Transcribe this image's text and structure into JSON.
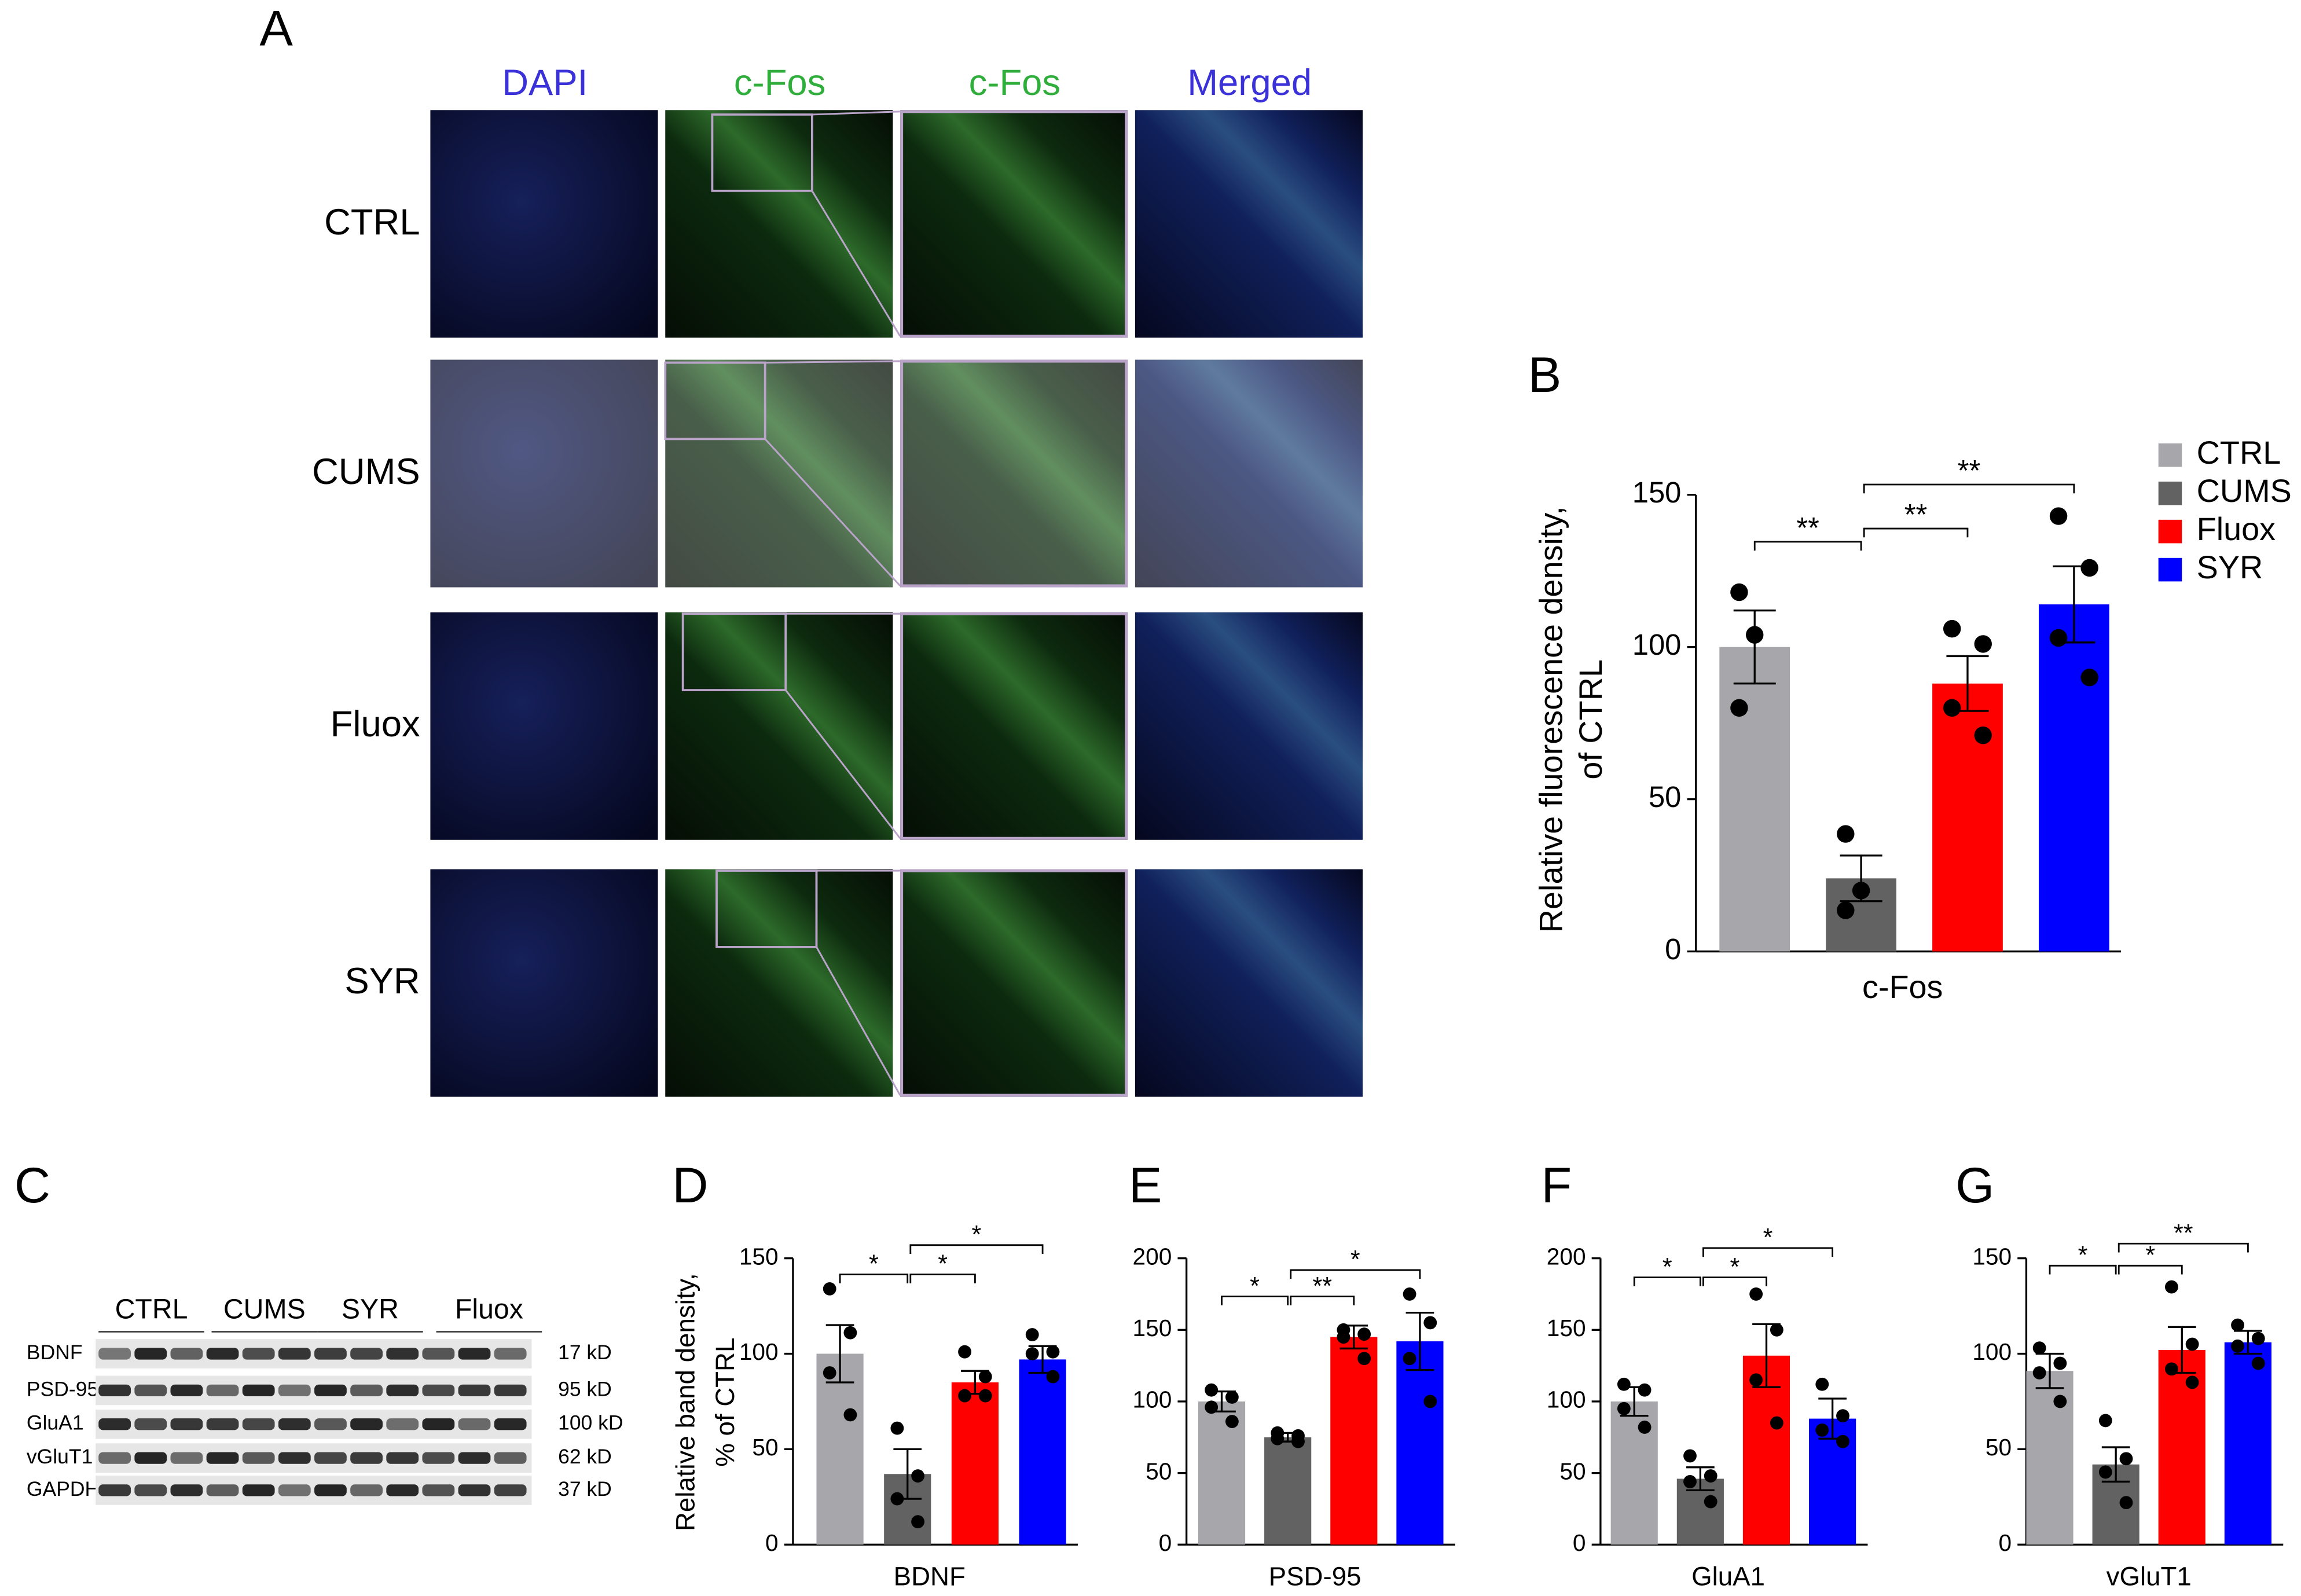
{
  "panel_labels": [
    "A",
    "B",
    "C",
    "D",
    "E",
    "F",
    "G"
  ],
  "micrograph": {
    "columns": [
      "DAPI",
      "c-Fos",
      "c-Fos",
      "Merged"
    ],
    "rows": [
      "CTRL",
      "CUMS",
      "Fluox",
      "SYR"
    ]
  },
  "western_blot": {
    "groups": [
      "CTRL",
      "CUMS",
      "SYR",
      "Fluox"
    ],
    "proteins": [
      "BDNF",
      "PSD-95",
      "GluA1",
      "vGluT1",
      "GAPDH"
    ],
    "weights": [
      "17 kD",
      "95 kD",
      "100 kD",
      "62 kD",
      "37 kD"
    ]
  },
  "chart_data": [
    {
      "type": "bar",
      "xlabel": "c-Fos",
      "ylabel": [
        "Relative fluorescence density,",
        "of CTRL"
      ],
      "ylim": [
        0,
        150
      ],
      "yticks": [
        0,
        50,
        100,
        150
      ],
      "legend": "right",
      "annotations": [
        "**",
        "**",
        "**"
      ],
      "series": [
        {
          "name": "CTRL",
          "color": "#a7a7ab",
          "values": [
            100
          ],
          "errors": [
            12
          ],
          "points": [
            118,
            104,
            80
          ]
        },
        {
          "name": "CUMS",
          "color": "#626262",
          "values": [
            24
          ],
          "errors": [
            7.5
          ],
          "points": [
            38.6,
            20,
            13.5
          ]
        },
        {
          "name": "Fluox",
          "color": "#fe0000",
          "values": [
            88
          ],
          "errors": [
            9
          ],
          "points": [
            106,
            101,
            80,
            71
          ]
        },
        {
          "name": "SYR",
          "color": "#0000fe",
          "values": [
            114
          ],
          "errors": [
            12.5
          ],
          "points": [
            143,
            126,
            103,
            90
          ]
        }
      ]
    },
    {
      "type": "bar",
      "xlabel": "BDNF",
      "ylabel": [
        "Relative band density,",
        "% of CTRL"
      ],
      "ylim": [
        0,
        150
      ],
      "yticks": [
        0,
        50,
        100,
        150
      ],
      "annotations": [
        "*",
        "*",
        "*"
      ],
      "series": [
        {
          "color": "#a7a7ab",
          "values": [
            100
          ],
          "errors": [
            15
          ],
          "points": [
            134,
            111,
            90,
            68
          ]
        },
        {
          "color": "#626262",
          "values": [
            37
          ],
          "errors": [
            13
          ],
          "points": [
            61,
            36,
            24,
            12
          ]
        },
        {
          "color": "#fe0000",
          "values": [
            85
          ],
          "errors": [
            6
          ],
          "points": [
            101,
            88,
            78,
            78
          ]
        },
        {
          "color": "#0000fe",
          "values": [
            97
          ],
          "errors": [
            7
          ],
          "points": [
            110,
            101,
            100,
            88
          ]
        }
      ]
    },
    {
      "type": "bar",
      "xlabel": "PSD-95",
      "ylim": [
        0,
        200
      ],
      "yticks": [
        0,
        50,
        100,
        150,
        200
      ],
      "annotations": [
        "*",
        "**",
        "*"
      ],
      "series": [
        {
          "color": "#a7a7ab",
          "values": [
            100
          ],
          "errors": [
            7
          ],
          "points": [
            108,
            103,
            96,
            86
          ]
        },
        {
          "color": "#626262",
          "values": [
            75
          ],
          "errors": [
            3
          ],
          "points": [
            78,
            76,
            74,
            72
          ]
        },
        {
          "color": "#fe0000",
          "values": [
            145
          ],
          "errors": [
            8
          ],
          "points": [
            150,
            147,
            145,
            130
          ]
        },
        {
          "color": "#0000fe",
          "values": [
            142
          ],
          "errors": [
            20
          ],
          "points": [
            175,
            155,
            130,
            100
          ]
        }
      ]
    },
    {
      "type": "bar",
      "xlabel": "GluA1",
      "ylim": [
        0,
        200
      ],
      "yticks": [
        0,
        50,
        100,
        150,
        200
      ],
      "annotations": [
        "*",
        "*",
        "*"
      ],
      "series": [
        {
          "color": "#a7a7ab",
          "values": [
            100
          ],
          "errors": [
            10
          ],
          "points": [
            112,
            108,
            95,
            82
          ]
        },
        {
          "color": "#626262",
          "values": [
            46
          ],
          "errors": [
            8
          ],
          "points": [
            62,
            48,
            44,
            30
          ]
        },
        {
          "color": "#fe0000",
          "values": [
            132
          ],
          "errors": [
            22
          ],
          "points": [
            175,
            150,
            115,
            85
          ]
        },
        {
          "color": "#0000fe",
          "values": [
            88
          ],
          "errors": [
            14
          ],
          "points": [
            112,
            90,
            80,
            72
          ]
        }
      ]
    },
    {
      "type": "bar",
      "xlabel": "vGluT1",
      "ylim": [
        0,
        150
      ],
      "yticks": [
        0,
        50,
        100,
        150
      ],
      "annotations": [
        "*",
        "*",
        "**"
      ],
      "series": [
        {
          "color": "#a7a7ab",
          "values": [
            91
          ],
          "errors": [
            9
          ],
          "points": [
            103,
            95,
            90,
            75
          ]
        },
        {
          "color": "#626262",
          "values": [
            42
          ],
          "errors": [
            9
          ],
          "points": [
            65,
            45,
            38,
            22
          ]
        },
        {
          "color": "#fe0000",
          "values": [
            102
          ],
          "errors": [
            12
          ],
          "points": [
            135,
            105,
            92,
            85
          ]
        },
        {
          "color": "#0000fe",
          "values": [
            106
          ],
          "errors": [
            6
          ],
          "points": [
            115,
            108,
            104,
            95
          ]
        }
      ]
    }
  ]
}
